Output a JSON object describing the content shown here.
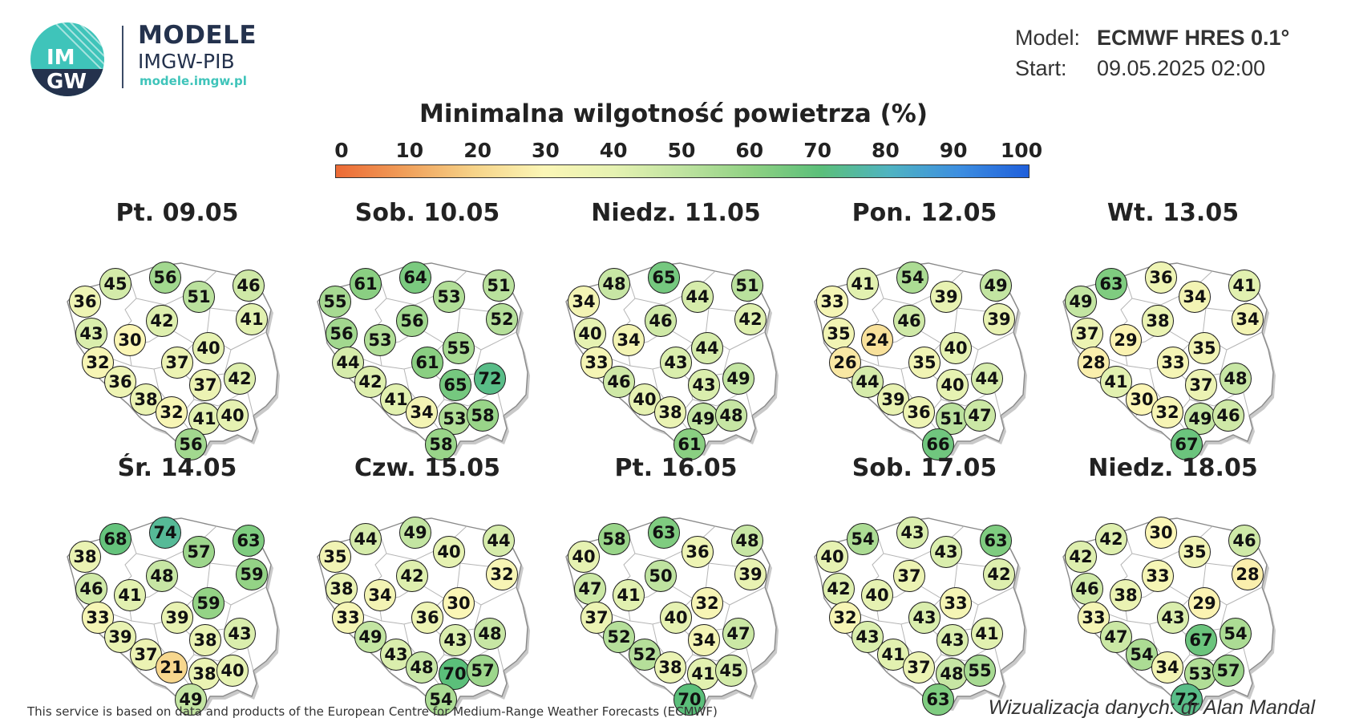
{
  "header": {
    "logo_text_top": "IM",
    "logo_text_bottom": "GW",
    "brand_title": "MODELE",
    "brand_subtitle": "IMGW-PIB",
    "brand_url": "modele.imgw.pl",
    "model_label": "Model:",
    "model_value": "ECMWF HRES 0.1°",
    "start_label": "Start:",
    "start_value": "09.05.2025 02:00"
  },
  "title": "Minimalna wilgotność powietrza (%)",
  "colorbar": {
    "ticks": [
      "0",
      "10",
      "20",
      "30",
      "40",
      "50",
      "60",
      "70",
      "80",
      "90",
      "100"
    ],
    "colors": [
      "#ec6a35",
      "#f09f5a",
      "#f6d389",
      "#fbf6b6",
      "#e6f2b2",
      "#bfe3a0",
      "#8fd183",
      "#5bbf7a",
      "#4fb3c2",
      "#3d8ee0",
      "#1f5fdb"
    ]
  },
  "days": [
    {
      "title": "Pt. 09.05",
      "values": [
        36,
        45,
        56,
        51,
        46,
        41,
        43,
        30,
        42,
        40,
        32,
        37,
        36,
        37,
        42,
        38,
        32,
        41,
        40,
        56
      ]
    },
    {
      "title": "Sob. 10.05",
      "values": [
        55,
        61,
        64,
        53,
        51,
        52,
        56,
        53,
        56,
        55,
        44,
        61,
        42,
        65,
        72,
        41,
        34,
        53,
        58,
        58
      ]
    },
    {
      "title": "Niedz. 11.05",
      "values": [
        34,
        48,
        65,
        44,
        51,
        42,
        40,
        34,
        46,
        44,
        33,
        43,
        46,
        43,
        49,
        40,
        38,
        49,
        48,
        61
      ]
    },
    {
      "title": "Pon. 12.05",
      "values": [
        33,
        41,
        54,
        39,
        49,
        39,
        35,
        24,
        46,
        40,
        26,
        35,
        44,
        40,
        44,
        39,
        36,
        51,
        47,
        66
      ]
    },
    {
      "title": "Wt. 13.05",
      "values": [
        49,
        63,
        36,
        34,
        41,
        34,
        37,
        29,
        38,
        35,
        28,
        33,
        41,
        37,
        48,
        30,
        32,
        49,
        46,
        67
      ]
    },
    {
      "title": "Śr. 14.05",
      "values": [
        38,
        68,
        74,
        57,
        63,
        59,
        46,
        41,
        48,
        59,
        33,
        39,
        39,
        38,
        43,
        37,
        21,
        38,
        40,
        49
      ]
    },
    {
      "title": "Czw. 15.05",
      "values": [
        35,
        44,
        49,
        40,
        44,
        32,
        38,
        34,
        42,
        30,
        33,
        36,
        49,
        43,
        48,
        43,
        48,
        70,
        57,
        54
      ]
    },
    {
      "title": "Pt. 16.05",
      "values": [
        40,
        58,
        63,
        36,
        48,
        39,
        47,
        41,
        50,
        32,
        37,
        40,
        52,
        34,
        47,
        52,
        38,
        41,
        45,
        70
      ]
    },
    {
      "title": "Sob. 17.05",
      "values": [
        40,
        54,
        43,
        43,
        63,
        42,
        42,
        40,
        37,
        33,
        32,
        43,
        43,
        43,
        41,
        41,
        37,
        48,
        55,
        63
      ]
    },
    {
      "title": "Niedz. 18.05",
      "values": [
        42,
        42,
        30,
        35,
        46,
        28,
        46,
        38,
        33,
        29,
        33,
        43,
        47,
        67,
        54,
        54,
        34,
        53,
        57,
        72
      ]
    }
  ],
  "footer": {
    "left": "This service is based on data and products of the European Centre for Medium-Range Weather Forecasts (ECMWF)",
    "right": "Wizualizacja danych: dr Alan Mandal"
  }
}
